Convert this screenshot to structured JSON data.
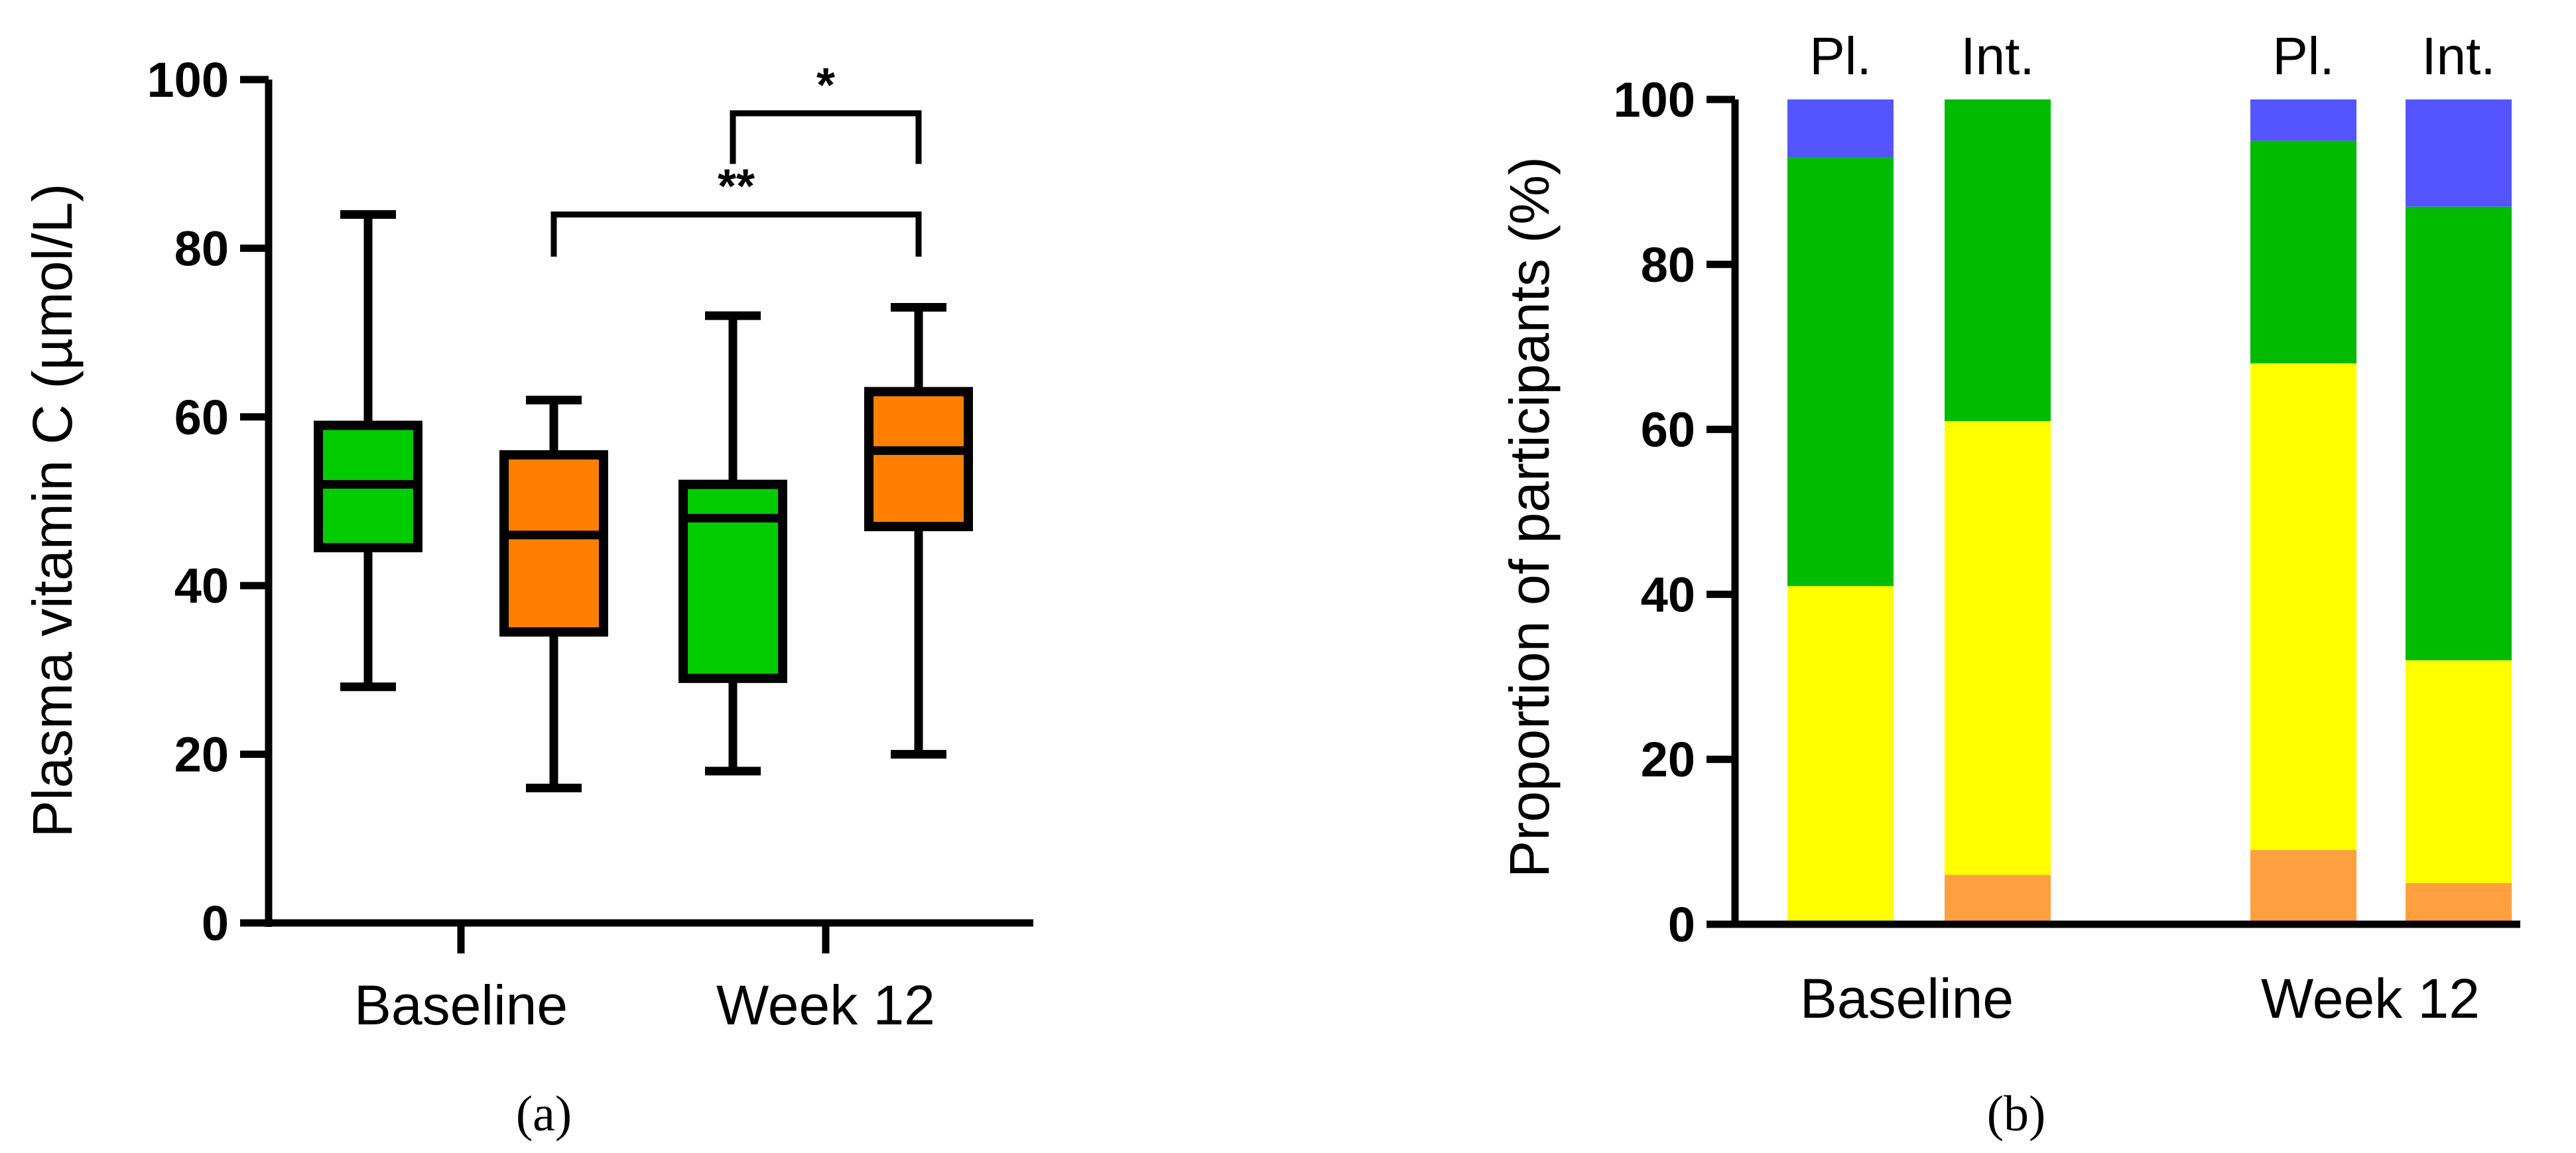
{
  "chart_data": [
    {
      "type": "boxplot",
      "panel_label": "(a)",
      "ylabel": "Plasma vitamin C (µmol/L)",
      "ylim": [
        0,
        100
      ],
      "yticks": [
        "0",
        "20",
        "40",
        "60",
        "80",
        "100"
      ],
      "categories": [
        "Baseline",
        "Week 12"
      ],
      "series_colors": {
        "placebo": "#00cc00",
        "intervention": "#ff7f00"
      },
      "boxes": [
        {
          "group": "Baseline",
          "series": "placebo",
          "min": 28,
          "q1": 44.5,
          "median": 52,
          "q3": 59,
          "max": 84
        },
        {
          "group": "Baseline",
          "series": "intervention",
          "min": 16,
          "q1": 34.5,
          "median": 46,
          "q3": 55.5,
          "max": 62
        },
        {
          "group": "Week 12",
          "series": "placebo",
          "min": 18,
          "q1": 29,
          "median": 48,
          "q3": 52,
          "max": 72
        },
        {
          "group": "Week 12",
          "series": "intervention",
          "min": 20,
          "q1": 47,
          "median": 56,
          "q3": 63,
          "max": 73
        }
      ],
      "significance": [
        {
          "label": "*",
          "from": "Week 12 placebo",
          "to": "Week 12 intervention",
          "level": 96
        },
        {
          "label": "**",
          "from": "Baseline intervention",
          "to": "Week 12 intervention",
          "level": 84
        }
      ]
    },
    {
      "type": "stacked_bar",
      "panel_label": "(b)",
      "ylabel": "Proportion of participants (%)",
      "ylim": [
        0,
        100
      ],
      "yticks": [
        "0",
        "20",
        "40",
        "60",
        "80",
        "100"
      ],
      "groups": [
        "Baseline",
        "Week 12"
      ],
      "bar_labels": [
        "Pl.",
        "Int.",
        "Pl.",
        "Int."
      ],
      "bars": [
        {
          "group": "Baseline",
          "label": "Pl.",
          "segments": [
            0,
            41,
            52,
            7
          ]
        },
        {
          "group": "Baseline",
          "label": "Int.",
          "segments": [
            6,
            55,
            39,
            0
          ]
        },
        {
          "group": "Week 12",
          "label": "Pl.",
          "segments": [
            9,
            59,
            27,
            5
          ]
        },
        {
          "group": "Week 12",
          "label": "Int.",
          "segments": [
            5,
            27,
            55,
            13
          ]
        }
      ],
      "segment_colors": [
        "#ffa040",
        "#ffff00",
        "#00bb00",
        "#5555ff"
      ]
    }
  ]
}
